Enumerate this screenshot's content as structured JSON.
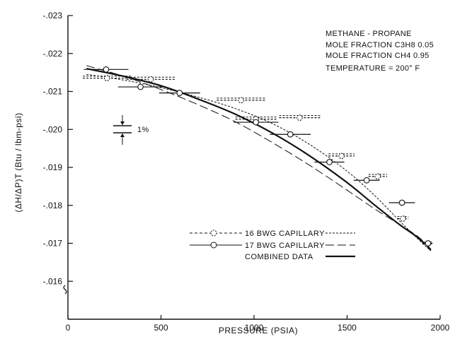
{
  "chart_data": {
    "type": "scatter",
    "title": "",
    "xlabel": "PRESSURE (PSIA)",
    "ylabel": "(ΔH/ΔP)T (Btu / lbm-psi)",
    "xlim": [
      0,
      2000
    ],
    "ylim": [
      -0.015,
      -0.023
    ],
    "x_ticks": [
      0,
      500,
      1000,
      1500,
      2000
    ],
    "x_tick_labels": [
      "0",
      "500",
      "1000",
      "1500",
      "2000"
    ],
    "y_ticks": [
      -0.016,
      -0.017,
      -0.018,
      -0.019,
      -0.02,
      -0.021,
      -0.022,
      -0.023
    ],
    "y_tick_labels": [
      "-.016",
      "-.017",
      "-.018",
      "-.019",
      "-.020",
      "-.021",
      "-.022",
      "-.023"
    ],
    "annotations": [
      "METHANE - PROPANE",
      "MOLE FRACTION C3H8 0.05",
      "MOLE FRACTION CH4 0.95",
      "TEMPERATURE = 200° F"
    ],
    "scale_label": "1%",
    "legend_position": "lower-center",
    "series": [
      {
        "name": "16 BWG CAPILLARY",
        "marker": "open-circle-dashed",
        "points": [
          {
            "x": 210,
            "y": -0.02135,
            "x_err": 130
          },
          {
            "x": 445,
            "y": -0.02132,
            "x_err": 130
          },
          {
            "x": 930,
            "y": -0.02077,
            "x_err": 130
          },
          {
            "x": 1010,
            "y": -0.02027,
            "x_err": 110
          },
          {
            "x": 1245,
            "y": -0.02031,
            "x_err": 110
          },
          {
            "x": 1470,
            "y": -0.0193,
            "x_err": 70
          },
          {
            "x": 1665,
            "y": -0.01876,
            "x_err": 50
          },
          {
            "x": 1800,
            "y": -0.01765,
            "x_err": 30
          },
          {
            "x": 1930,
            "y": -0.01698,
            "x_err": 25
          }
        ]
      },
      {
        "name": "17 BWG CAPILLARY",
        "marker": "open-circle-solid",
        "points": [
          {
            "x": 205,
            "y": -0.02158,
            "x_err": 120
          },
          {
            "x": 390,
            "y": -0.02112,
            "x_err": 120
          },
          {
            "x": 600,
            "y": -0.02096,
            "x_err": 110
          },
          {
            "x": 1010,
            "y": -0.02019,
            "x_err": 120
          },
          {
            "x": 1195,
            "y": -0.01987,
            "x_err": 110
          },
          {
            "x": 1405,
            "y": -0.01914,
            "x_err": 80
          },
          {
            "x": 1605,
            "y": -0.01866,
            "x_err": 70
          },
          {
            "x": 1795,
            "y": -0.01807,
            "x_err": 70
          },
          {
            "x": 1935,
            "y": -0.017,
            "x_err": 25
          }
        ]
      },
      {
        "name": "COMBINED DATA",
        "style": "solid-thick",
        "curve": [
          {
            "x": 100,
            "y": -0.0216
          },
          {
            "x": 300,
            "y": -0.0214
          },
          {
            "x": 500,
            "y": -0.02115
          },
          {
            "x": 700,
            "y": -0.0208
          },
          {
            "x": 900,
            "y": -0.0204
          },
          {
            "x": 1100,
            "y": -0.0199
          },
          {
            "x": 1300,
            "y": -0.0193
          },
          {
            "x": 1500,
            "y": -0.0186
          },
          {
            "x": 1650,
            "y": -0.018
          },
          {
            "x": 1780,
            "y": -0.0175
          },
          {
            "x": 1880,
            "y": -0.01715
          },
          {
            "x": 1950,
            "y": -0.01682
          }
        ]
      }
    ],
    "fit_16_bwg": [
      {
        "x": 100,
        "y": -0.02145
      },
      {
        "x": 300,
        "y": -0.0213
      },
      {
        "x": 500,
        "y": -0.0211
      },
      {
        "x": 700,
        "y": -0.02085
      },
      {
        "x": 900,
        "y": -0.02055
      },
      {
        "x": 1100,
        "y": -0.02015
      },
      {
        "x": 1300,
        "y": -0.0196
      },
      {
        "x": 1500,
        "y": -0.0189
      },
      {
        "x": 1650,
        "y": -0.01825
      },
      {
        "x": 1780,
        "y": -0.0176
      },
      {
        "x": 1880,
        "y": -0.01712
      },
      {
        "x": 1950,
        "y": -0.0168
      }
    ],
    "fit_17_bwg": [
      {
        "x": 100,
        "y": -0.02168
      },
      {
        "x": 300,
        "y": -0.0214
      },
      {
        "x": 500,
        "y": -0.02105
      },
      {
        "x": 700,
        "y": -0.02065
      },
      {
        "x": 900,
        "y": -0.0202
      },
      {
        "x": 1100,
        "y": -0.01965
      },
      {
        "x": 1300,
        "y": -0.01905
      },
      {
        "x": 1500,
        "y": -0.0184
      },
      {
        "x": 1650,
        "y": -0.0179
      },
      {
        "x": 1780,
        "y": -0.0175
      },
      {
        "x": 1880,
        "y": -0.01718
      },
      {
        "x": 1950,
        "y": -0.01685
      }
    ]
  }
}
